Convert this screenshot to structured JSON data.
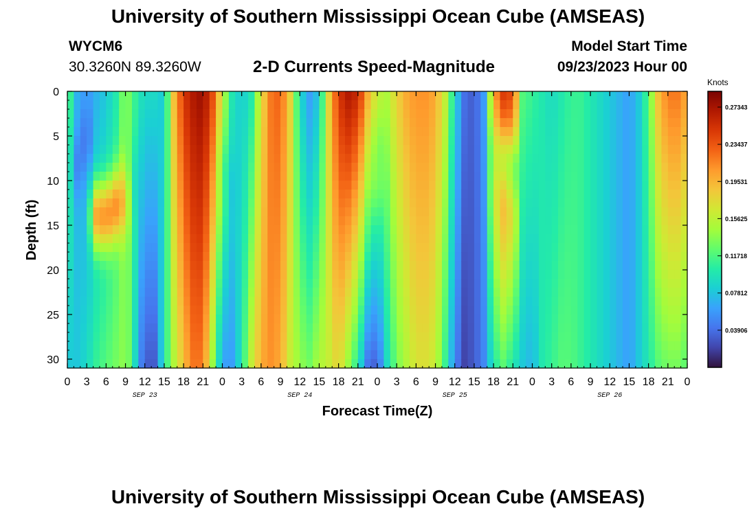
{
  "header": {
    "title": "University of Southern Mississippi Ocean Cube (AMSEAS)",
    "station_id": "WYCM6",
    "coords": "30.3260N  89.3260W",
    "plot_title": "2-D Currents Speed-Magnitude",
    "start_label": "Model Start Time",
    "start_value": "09/23/2023 Hour 00"
  },
  "footer": {
    "title": "University of Southern Mississippi Ocean Cube (AMSEAS)"
  },
  "chart_data": {
    "type": "heatmap",
    "title": "2-D Currents Speed-Magnitude",
    "xlabel": "Forecast Time(Z)",
    "ylabel": "Depth (ft)",
    "x_range_hours": [
      0,
      96
    ],
    "y_range_ft": [
      0,
      31
    ],
    "x_tick_labels": [
      "0",
      "3",
      "6",
      "9",
      "12",
      "15",
      "18",
      "21",
      "0",
      "3",
      "6",
      "9",
      "12",
      "15",
      "18",
      "21",
      "0",
      "3",
      "6",
      "9",
      "12",
      "15",
      "18",
      "21",
      "0",
      "3",
      "6",
      "9",
      "12",
      "15",
      "18",
      "21",
      "0"
    ],
    "y_ticks": [
      0,
      5,
      10,
      15,
      20,
      25,
      30
    ],
    "y_tick_labels": [
      "0",
      "5",
      "10",
      "15",
      "20",
      "25",
      "30"
    ],
    "date_labels": [
      "SEP 23",
      "SEP 24",
      "SEP 25",
      "SEP 26"
    ],
    "colorbar": {
      "unit": "Knots",
      "range": [
        0.0,
        0.29
      ],
      "tick_values": [
        0.03906,
        0.07812,
        0.11718,
        0.15625,
        0.19531,
        0.23437,
        0.27343
      ],
      "tick_labels": [
        "0.03906",
        "0.07812",
        "0.11718",
        "0.15625",
        "0.19531",
        "0.23437",
        "0.27343"
      ]
    },
    "columns": [
      {
        "hour": 0,
        "surface": 0.13,
        "bottom": 0.08,
        "mid": null,
        "depth_mid": null
      },
      {
        "hour": 1.5,
        "surface": 0.07,
        "bottom": 0.08,
        "mid": 0.05,
        "depth_mid": 8
      },
      {
        "hour": 3,
        "surface": 0.06,
        "bottom": 0.09,
        "mid": 0.04,
        "depth_mid": 5
      },
      {
        "hour": 4.5,
        "surface": 0.07,
        "bottom": 0.11,
        "mid": 0.2,
        "depth_mid": 14
      },
      {
        "hour": 6,
        "surface": 0.08,
        "bottom": 0.12,
        "mid": 0.21,
        "depth_mid": 14
      },
      {
        "hour": 7.5,
        "surface": 0.1,
        "bottom": 0.13,
        "mid": 0.21,
        "depth_mid": 13
      },
      {
        "hour": 9,
        "surface": 0.14,
        "bottom": 0.14,
        "mid": 0.19,
        "depth_mid": 12
      },
      {
        "hour": 10,
        "surface": 0.12,
        "bottom": 0.12,
        "mid": 0.1,
        "depth_mid": 10
      },
      {
        "hour": 11,
        "surface": 0.1,
        "bottom": 0.06,
        "mid": null,
        "depth_mid": null
      },
      {
        "hour": 12,
        "surface": 0.09,
        "bottom": 0.03,
        "mid": null,
        "depth_mid": null
      },
      {
        "hour": 13.5,
        "surface": 0.09,
        "bottom": 0.03,
        "mid": null,
        "depth_mid": null
      },
      {
        "hour": 15,
        "surface": 0.08,
        "bottom": 0.1,
        "mid": null,
        "depth_mid": null
      },
      {
        "hour": 16.5,
        "surface": 0.19,
        "bottom": 0.15,
        "mid": null,
        "depth_mid": null
      },
      {
        "hour": 18,
        "surface": 0.25,
        "bottom": 0.19,
        "mid": null,
        "depth_mid": null
      },
      {
        "hour": 19.5,
        "surface": 0.27,
        "bottom": 0.22,
        "mid": null,
        "depth_mid": null
      },
      {
        "hour": 21,
        "surface": 0.28,
        "bottom": 0.22,
        "mid": null,
        "depth_mid": null
      },
      {
        "hour": 22.5,
        "surface": 0.24,
        "bottom": 0.14,
        "mid": null,
        "depth_mid": null
      },
      {
        "hour": 24,
        "surface": 0.16,
        "bottom": 0.06,
        "mid": 0.12,
        "depth_mid": 10
      },
      {
        "hour": 25.5,
        "surface": 0.1,
        "bottom": 0.06,
        "mid": 0.08,
        "depth_mid": 12
      },
      {
        "hour": 27,
        "surface": 0.08,
        "bottom": 0.1,
        "mid": null,
        "depth_mid": null
      },
      {
        "hour": 28.5,
        "surface": 0.1,
        "bottom": 0.16,
        "mid": null,
        "depth_mid": null
      },
      {
        "hour": 30,
        "surface": 0.17,
        "bottom": 0.2,
        "mid": null,
        "depth_mid": null
      },
      {
        "hour": 31.5,
        "surface": 0.22,
        "bottom": 0.21,
        "mid": null,
        "depth_mid": null
      },
      {
        "hour": 33,
        "surface": 0.23,
        "bottom": 0.2,
        "mid": null,
        "depth_mid": null
      },
      {
        "hour": 34.5,
        "surface": 0.18,
        "bottom": 0.16,
        "mid": null,
        "depth_mid": null
      },
      {
        "hour": 36,
        "surface": 0.09,
        "bottom": 0.14,
        "mid": null,
        "depth_mid": null
      },
      {
        "hour": 37.5,
        "surface": 0.06,
        "bottom": 0.13,
        "mid": null,
        "depth_mid": null
      },
      {
        "hour": 39,
        "surface": 0.08,
        "bottom": 0.15,
        "mid": null,
        "depth_mid": null
      },
      {
        "hour": 40.5,
        "surface": 0.18,
        "bottom": 0.16,
        "mid": null,
        "depth_mid": null
      },
      {
        "hour": 42,
        "surface": 0.25,
        "bottom": 0.18,
        "mid": null,
        "depth_mid": null
      },
      {
        "hour": 43.5,
        "surface": 0.27,
        "bottom": 0.14,
        "mid": null,
        "depth_mid": null
      },
      {
        "hour": 45,
        "surface": 0.26,
        "bottom": 0.1,
        "mid": null,
        "depth_mid": null
      },
      {
        "hour": 46.5,
        "surface": 0.2,
        "bottom": 0.04,
        "mid": null,
        "depth_mid": null
      },
      {
        "hour": 48,
        "surface": 0.16,
        "bottom": 0.03,
        "mid": 0.13,
        "depth_mid": 9
      },
      {
        "hour": 49.5,
        "surface": 0.15,
        "bottom": 0.09,
        "mid": null,
        "depth_mid": null
      },
      {
        "hour": 51,
        "surface": 0.18,
        "bottom": 0.13,
        "mid": null,
        "depth_mid": null
      },
      {
        "hour": 52.5,
        "surface": 0.2,
        "bottom": 0.15,
        "mid": null,
        "depth_mid": null
      },
      {
        "hour": 54,
        "surface": 0.21,
        "bottom": 0.17,
        "mid": null,
        "depth_mid": null
      },
      {
        "hour": 55.5,
        "surface": 0.21,
        "bottom": 0.17,
        "mid": null,
        "depth_mid": null
      },
      {
        "hour": 57,
        "surface": 0.2,
        "bottom": 0.16,
        "mid": null,
        "depth_mid": null
      },
      {
        "hour": 58.5,
        "surface": 0.16,
        "bottom": 0.11,
        "mid": null,
        "depth_mid": null
      },
      {
        "hour": 60,
        "surface": 0.09,
        "bottom": 0.05,
        "mid": null,
        "depth_mid": null
      },
      {
        "hour": 61.5,
        "surface": 0.04,
        "bottom": 0.02,
        "mid": null,
        "depth_mid": null
      },
      {
        "hour": 63,
        "surface": 0.03,
        "bottom": 0.03,
        "mid": null,
        "depth_mid": null
      },
      {
        "hour": 64.5,
        "surface": 0.06,
        "bottom": 0.05,
        "mid": null,
        "depth_mid": null
      },
      {
        "hour": 66,
        "surface": 0.2,
        "bottom": 0.1,
        "mid": 0.16,
        "depth_mid": 8
      },
      {
        "hour": 67.5,
        "surface": 0.25,
        "bottom": 0.12,
        "mid": 0.16,
        "depth_mid": 8
      },
      {
        "hour": 69,
        "surface": 0.24,
        "bottom": 0.1,
        "mid": 0.14,
        "depth_mid": 9
      },
      {
        "hour": 70.5,
        "surface": 0.12,
        "bottom": 0.08,
        "mid": null,
        "depth_mid": null
      },
      {
        "hour": 72,
        "surface": 0.11,
        "bottom": 0.07,
        "mid": null,
        "depth_mid": null
      },
      {
        "hour": 73.5,
        "surface": 0.1,
        "bottom": 0.1,
        "mid": null,
        "depth_mid": null
      },
      {
        "hour": 75,
        "surface": 0.09,
        "bottom": 0.11,
        "mid": null,
        "depth_mid": null
      },
      {
        "hour": 76.5,
        "surface": 0.1,
        "bottom": 0.12,
        "mid": null,
        "depth_mid": null
      },
      {
        "hour": 78,
        "surface": 0.11,
        "bottom": 0.12,
        "mid": null,
        "depth_mid": null
      },
      {
        "hour": 79.5,
        "surface": 0.11,
        "bottom": 0.11,
        "mid": null,
        "depth_mid": null
      },
      {
        "hour": 81,
        "surface": 0.1,
        "bottom": 0.1,
        "mid": null,
        "depth_mid": null
      },
      {
        "hour": 82.5,
        "surface": 0.09,
        "bottom": 0.09,
        "mid": null,
        "depth_mid": null
      },
      {
        "hour": 84,
        "surface": 0.08,
        "bottom": 0.08,
        "mid": null,
        "depth_mid": null
      },
      {
        "hour": 85.5,
        "surface": 0.07,
        "bottom": 0.07,
        "mid": null,
        "depth_mid": null
      },
      {
        "hour": 87,
        "surface": 0.06,
        "bottom": 0.06,
        "mid": null,
        "depth_mid": null
      },
      {
        "hour": 88.5,
        "surface": 0.08,
        "bottom": 0.08,
        "mid": null,
        "depth_mid": null
      },
      {
        "hour": 90,
        "surface": 0.12,
        "bottom": 0.1,
        "mid": null,
        "depth_mid": null
      },
      {
        "hour": 91.5,
        "surface": 0.19,
        "bottom": 0.12,
        "mid": null,
        "depth_mid": null
      },
      {
        "hour": 93,
        "surface": 0.22,
        "bottom": 0.13,
        "mid": null,
        "depth_mid": null
      },
      {
        "hour": 94.5,
        "surface": 0.22,
        "bottom": 0.13,
        "mid": null,
        "depth_mid": null
      },
      {
        "hour": 96,
        "surface": 0.2,
        "bottom": 0.12,
        "mid": null,
        "depth_mid": null
      }
    ]
  },
  "colors": {
    "palette": [
      "#30123b",
      "#4145ab",
      "#4675ed",
      "#39a2fc",
      "#1bcfd4",
      "#24eca6",
      "#61fc6c",
      "#a4fc3b",
      "#d1e834",
      "#f3c63a",
      "#fe9b2d",
      "#f36315",
      "#d93806",
      "#b11901",
      "#7a0403"
    ]
  }
}
